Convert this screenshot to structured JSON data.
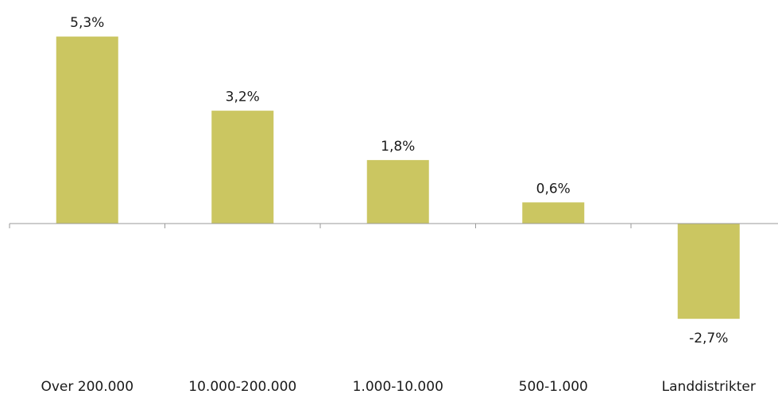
{
  "chart_data": {
    "type": "bar",
    "categories": [
      "Over 200.000",
      "10.000-200.000",
      "1.000-10.000",
      "500-1.000",
      "Landdistrikter"
    ],
    "values": [
      5.3,
      3.2,
      1.8,
      0.6,
      -2.7
    ],
    "value_labels": [
      "5,3%",
      "3,2%",
      "1,8%",
      "0,6%",
      "-2,7%"
    ],
    "title": "",
    "xlabel": "",
    "ylabel": "",
    "grid": false,
    "legend": "none",
    "bar_color": "#cbc661",
    "axis_color": "#9a9a9a"
  }
}
